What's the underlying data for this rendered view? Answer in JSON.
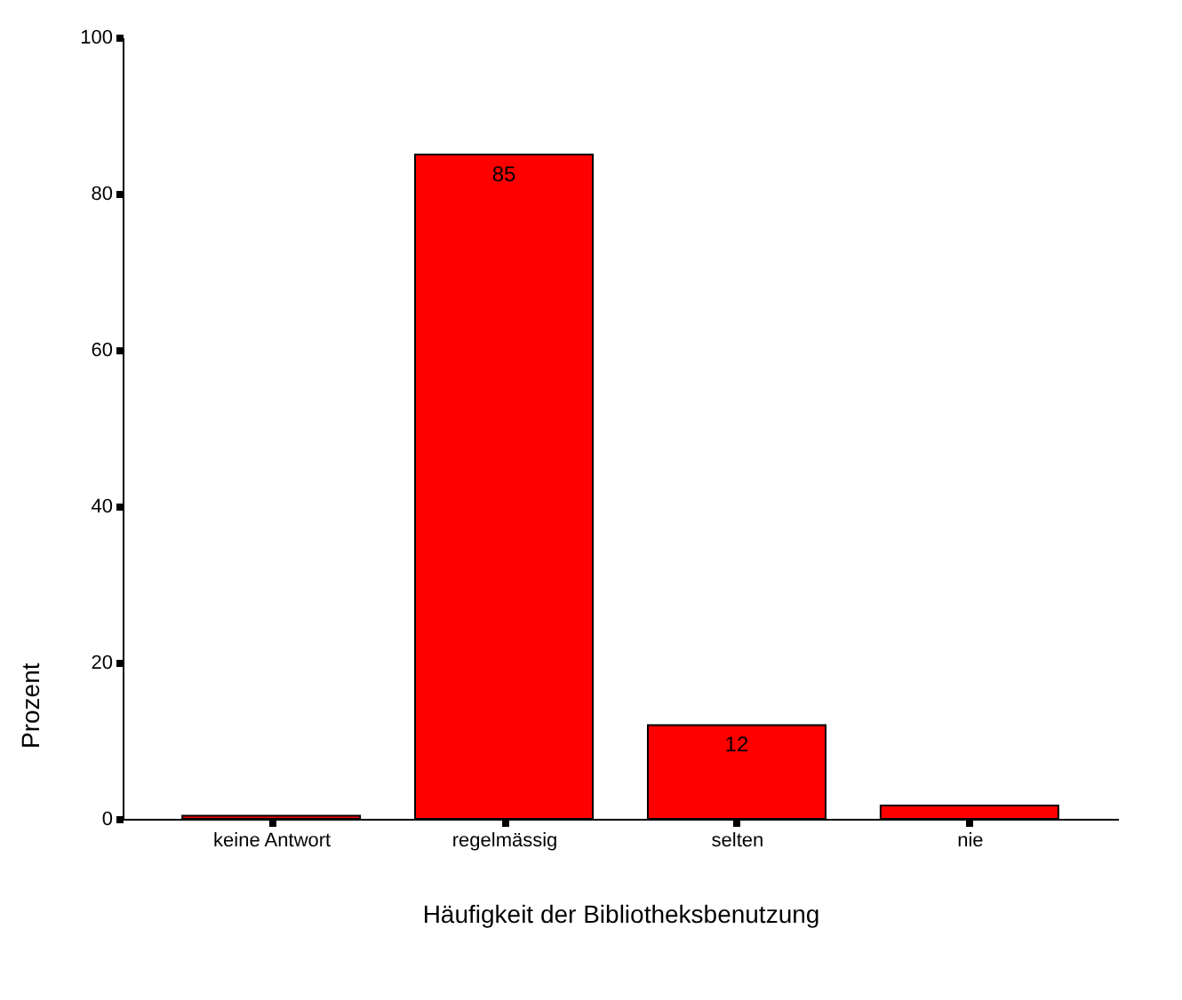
{
  "chart_data": {
    "type": "bar",
    "xlabel": "Häufigkeit der Bibliotheksbenutzung",
    "ylabel": "Prozent",
    "categories": [
      "keine Antwort",
      "regelmässig",
      "selten",
      "nie"
    ],
    "values": [
      0.4,
      85,
      12,
      1.7
    ],
    "value_labels": [
      null,
      "85",
      "12",
      null
    ],
    "color": "#ff0000",
    "ylim": [
      0,
      100
    ],
    "yticks": [
      0,
      20,
      40,
      60,
      80,
      100
    ],
    "grid": false
  }
}
